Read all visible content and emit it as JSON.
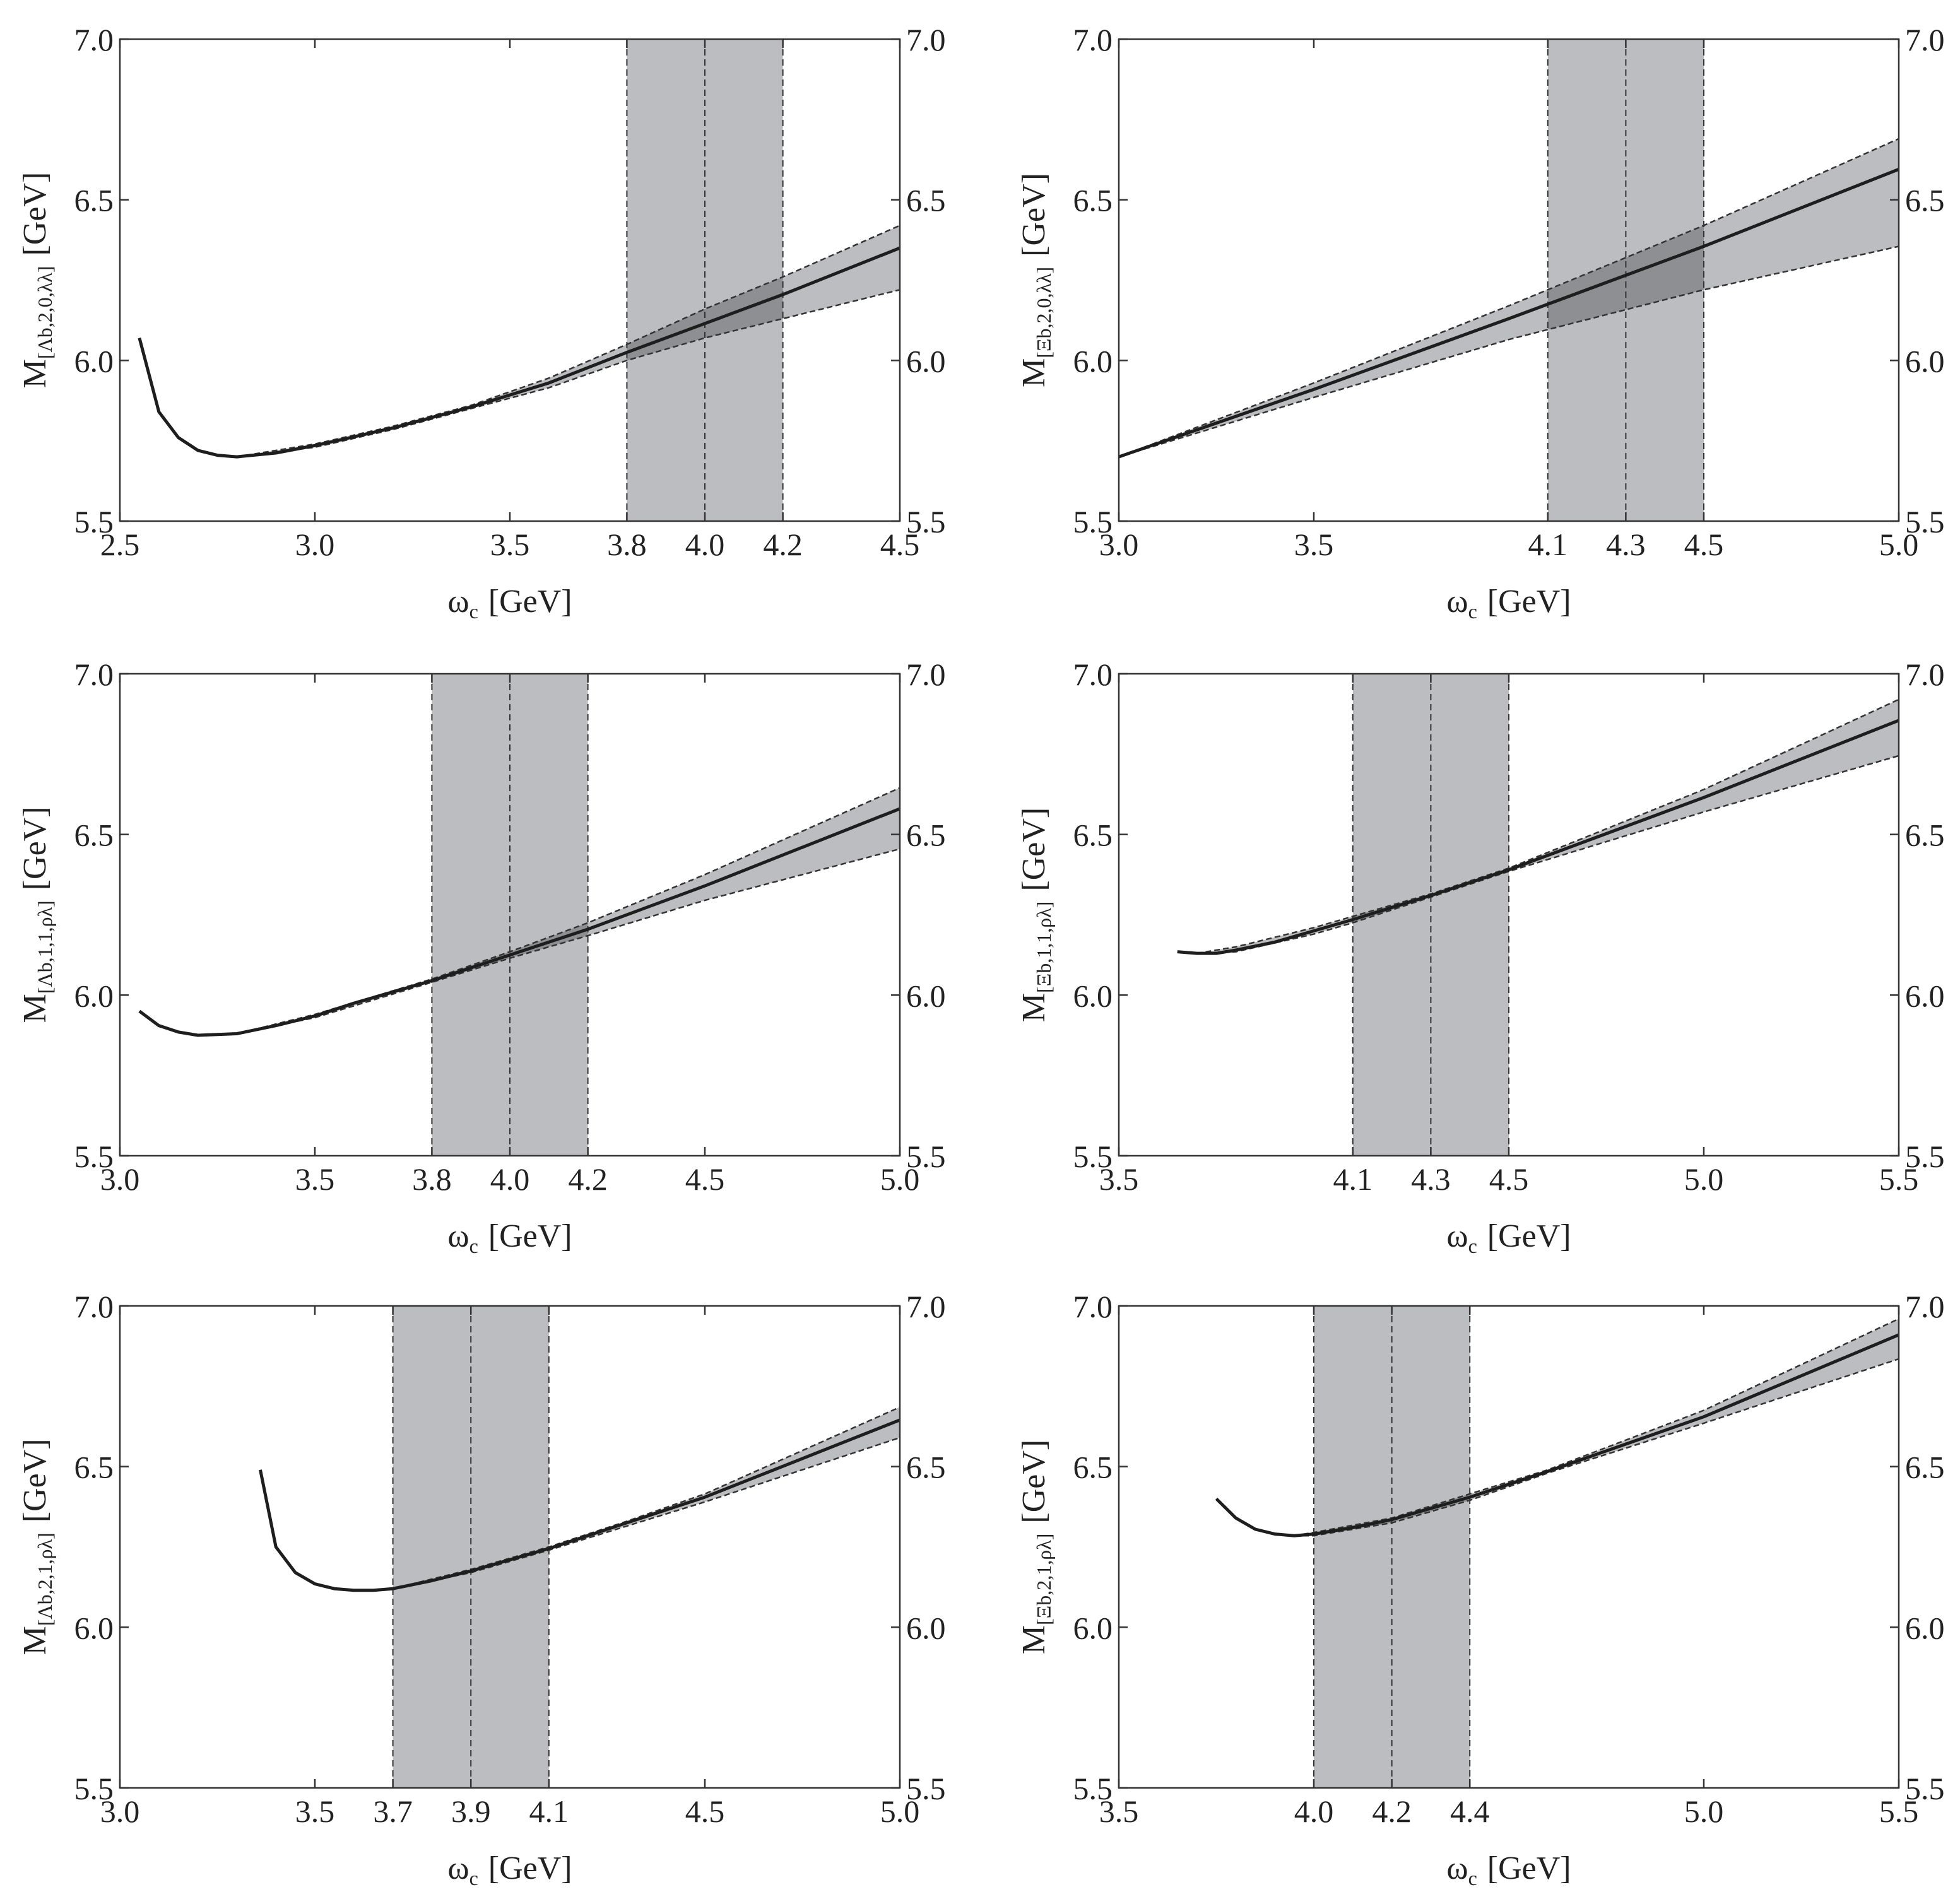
{
  "colors": {
    "band": "#bcbdc0",
    "band_overlap": "#8e8f92",
    "curve": "#1e1e1e",
    "dash": "#333333",
    "frame": "#333333"
  },
  "chart_data": [
    {
      "type": "line",
      "title": "",
      "xlabel": {
        "main": "ω",
        "sub": "c",
        "unit": "[GeV]"
      },
      "ylabel": {
        "main": "M",
        "sub": "[Λb,2,0,λλ]",
        "unit": "[GeV]"
      },
      "xlim": [
        2.5,
        4.5
      ],
      "ylim": [
        5.5,
        7.0
      ],
      "xticks": [
        2.5,
        3.0,
        3.5,
        3.8,
        4.0,
        4.2,
        4.5
      ],
      "xtick_labels": [
        "2.5",
        "3.0",
        "3.5",
        "3.8",
        "4.0",
        "4.2",
        "4.5"
      ],
      "yticks": [
        5.5,
        6.0,
        6.5,
        7.0
      ],
      "ytick_labels": [
        "5.5",
        "6.0",
        "6.5",
        "7.0"
      ],
      "working_window": {
        "from": 3.8,
        "center": 4.0,
        "to": 4.2
      },
      "series": [
        {
          "name": "central",
          "x": [
            2.55,
            2.6,
            2.65,
            2.7,
            2.75,
            2.8,
            2.9,
            3.0,
            3.2,
            3.4,
            3.6,
            3.8,
            4.0,
            4.2,
            4.5
          ],
          "y": [
            6.07,
            5.84,
            5.76,
            5.72,
            5.705,
            5.7,
            5.712,
            5.735,
            5.79,
            5.855,
            5.93,
            6.025,
            6.115,
            6.205,
            6.35
          ]
        },
        {
          "name": "upper",
          "x": [
            2.8,
            3.0,
            3.2,
            3.4,
            3.6,
            3.8,
            4.0,
            4.2,
            4.5
          ],
          "y": [
            5.7,
            5.74,
            5.795,
            5.86,
            5.945,
            6.05,
            6.16,
            6.26,
            6.42
          ]
        },
        {
          "name": "lower",
          "x": [
            2.8,
            3.0,
            3.2,
            3.4,
            3.6,
            3.8,
            4.0,
            4.2,
            4.5
          ],
          "y": [
            5.7,
            5.73,
            5.785,
            5.85,
            5.915,
            6.0,
            6.07,
            6.13,
            6.22
          ]
        }
      ]
    },
    {
      "type": "line",
      "title": "",
      "xlabel": {
        "main": "ω",
        "sub": "c",
        "unit": "[GeV]"
      },
      "ylabel": {
        "main": "M",
        "sub": "[Ξb,2,0,λλ]",
        "unit": "[GeV]"
      },
      "xlim": [
        3.0,
        5.0
      ],
      "ylim": [
        5.5,
        7.0
      ],
      "xticks": [
        3.0,
        3.5,
        4.1,
        4.3,
        4.5,
        5.0
      ],
      "xtick_labels": [
        "3.0",
        "3.5",
        "4.1",
        "4.3",
        "4.5",
        "5.0"
      ],
      "yticks": [
        5.5,
        6.0,
        6.5,
        7.0
      ],
      "ytick_labels": [
        "5.5",
        "6.0",
        "6.5",
        "7.0"
      ],
      "working_window": {
        "from": 4.1,
        "center": 4.3,
        "to": 4.5
      },
      "series": [
        {
          "name": "central",
          "x": [
            3.0,
            3.5,
            4.0,
            4.5,
            5.0
          ],
          "y": [
            5.7,
            5.91,
            6.13,
            6.355,
            6.595
          ]
        },
        {
          "name": "upper",
          "x": [
            3.0,
            3.5,
            4.0,
            4.5,
            5.0
          ],
          "y": [
            5.7,
            5.93,
            6.17,
            6.42,
            6.69
          ]
        },
        {
          "name": "lower",
          "x": [
            3.0,
            3.5,
            4.0,
            4.5,
            5.0
          ],
          "y": [
            5.7,
            5.885,
            6.065,
            6.22,
            6.355
          ]
        }
      ]
    },
    {
      "type": "line",
      "title": "",
      "xlabel": {
        "main": "ω",
        "sub": "c",
        "unit": "[GeV]"
      },
      "ylabel": {
        "main": "M",
        "sub": "[Λb,1,1,ρλ]",
        "unit": "[GeV]"
      },
      "xlim": [
        3.0,
        5.0
      ],
      "ylim": [
        5.5,
        7.0
      ],
      "xticks": [
        3.0,
        3.5,
        3.8,
        4.0,
        4.2,
        4.5,
        5.0
      ],
      "xtick_labels": [
        "3.0",
        "3.5",
        "3.8",
        "4.0",
        "4.2",
        "4.5",
        "5.0"
      ],
      "yticks": [
        5.5,
        6.0,
        6.5,
        7.0
      ],
      "ytick_labels": [
        "5.5",
        "6.0",
        "6.5",
        "7.0"
      ],
      "working_window": {
        "from": 3.8,
        "center": 4.0,
        "to": 4.2
      },
      "series": [
        {
          "name": "central",
          "x": [
            3.05,
            3.1,
            3.15,
            3.2,
            3.3,
            3.4,
            3.5,
            3.6,
            3.8,
            4.0,
            4.2,
            4.5,
            5.0
          ],
          "y": [
            5.95,
            5.905,
            5.885,
            5.875,
            5.88,
            5.905,
            5.935,
            5.975,
            6.045,
            6.125,
            6.205,
            6.34,
            6.58
          ]
        },
        {
          "name": "upper",
          "x": [
            3.3,
            3.5,
            3.8,
            4.0,
            4.2,
            4.5,
            5.0
          ],
          "y": [
            5.88,
            5.94,
            6.05,
            6.135,
            6.225,
            6.375,
            6.645
          ]
        },
        {
          "name": "lower",
          "x": [
            3.3,
            3.5,
            3.8,
            4.0,
            4.2,
            4.5,
            5.0
          ],
          "y": [
            5.88,
            5.93,
            6.04,
            6.115,
            6.185,
            6.295,
            6.455
          ]
        }
      ]
    },
    {
      "type": "line",
      "title": "",
      "xlabel": {
        "main": "ω",
        "sub": "c",
        "unit": "[GeV]"
      },
      "ylabel": {
        "main": "M",
        "sub": "[Ξb,1,1,ρλ]",
        "unit": "[GeV]"
      },
      "xlim": [
        3.5,
        5.5
      ],
      "ylim": [
        5.5,
        7.0
      ],
      "xticks": [
        3.5,
        4.1,
        4.3,
        4.5,
        5.0,
        5.5
      ],
      "xtick_labels": [
        "3.5",
        "4.1",
        "4.3",
        "4.5",
        "5.0",
        "5.5"
      ],
      "yticks": [
        5.5,
        6.0,
        6.5,
        7.0
      ],
      "ytick_labels": [
        "5.5",
        "6.0",
        "6.5",
        "7.0"
      ],
      "working_window": {
        "from": 4.1,
        "center": 4.3,
        "to": 4.5
      },
      "series": [
        {
          "name": "central",
          "x": [
            3.65,
            3.7,
            3.75,
            3.8,
            3.9,
            4.0,
            4.1,
            4.3,
            4.5,
            5.0,
            5.5
          ],
          "y": [
            6.135,
            6.13,
            6.13,
            6.14,
            6.165,
            6.2,
            6.235,
            6.31,
            6.39,
            6.615,
            6.855
          ]
        },
        {
          "name": "upper",
          "x": [
            3.7,
            3.8,
            4.0,
            4.1,
            4.3,
            4.5,
            5.0,
            5.5
          ],
          "y": [
            6.13,
            6.15,
            6.21,
            6.245,
            6.315,
            6.395,
            6.64,
            6.92
          ]
        },
        {
          "name": "lower",
          "x": [
            3.7,
            3.8,
            4.0,
            4.1,
            4.3,
            4.5,
            5.0,
            5.5
          ],
          "y": [
            6.13,
            6.135,
            6.19,
            6.225,
            6.305,
            6.385,
            6.57,
            6.745
          ]
        }
      ]
    },
    {
      "type": "line",
      "title": "",
      "xlabel": {
        "main": "ω",
        "sub": "c",
        "unit": "[GeV]"
      },
      "ylabel": {
        "main": "M",
        "sub": "[Λb,2,1,ρλ]",
        "unit": "[GeV]"
      },
      "xlim": [
        3.0,
        5.0
      ],
      "ylim": [
        5.5,
        7.0
      ],
      "xticks": [
        3.0,
        3.5,
        3.7,
        3.9,
        4.1,
        4.5,
        5.0
      ],
      "xtick_labels": [
        "3.0",
        "3.5",
        "3.7",
        "3.9",
        "4.1",
        "4.5",
        "5.0"
      ],
      "yticks": [
        5.5,
        6.0,
        6.5,
        7.0
      ],
      "ytick_labels": [
        "5.5",
        "6.0",
        "6.5",
        "7.0"
      ],
      "working_window": {
        "from": 3.7,
        "center": 3.9,
        "to": 4.1
      },
      "series": [
        {
          "name": "central",
          "x": [
            3.36,
            3.4,
            3.45,
            3.5,
            3.55,
            3.6,
            3.65,
            3.7,
            3.8,
            3.9,
            4.0,
            4.1,
            4.3,
            4.5,
            5.0
          ],
          "y": [
            6.49,
            6.25,
            6.17,
            6.135,
            6.12,
            6.115,
            6.115,
            6.12,
            6.145,
            6.175,
            6.21,
            6.245,
            6.325,
            6.405,
            6.645
          ]
        },
        {
          "name": "upper",
          "x": [
            3.7,
            3.9,
            4.1,
            4.3,
            4.5,
            5.0
          ],
          "y": [
            6.12,
            6.18,
            6.25,
            6.33,
            6.415,
            6.685
          ]
        },
        {
          "name": "lower",
          "x": [
            3.7,
            3.9,
            4.1,
            4.3,
            4.5,
            5.0
          ],
          "y": [
            6.12,
            6.17,
            6.24,
            6.315,
            6.39,
            6.59
          ]
        }
      ]
    },
    {
      "type": "line",
      "title": "",
      "xlabel": {
        "main": "ω",
        "sub": "c",
        "unit": "[GeV]"
      },
      "ylabel": {
        "main": "M",
        "sub": "[Ξb,2,1,ρλ]",
        "unit": "[GeV]"
      },
      "xlim": [
        3.5,
        5.5
      ],
      "ylim": [
        5.5,
        7.0
      ],
      "xticks": [
        3.5,
        4.0,
        4.2,
        4.4,
        5.0,
        5.5
      ],
      "xtick_labels": [
        "3.5",
        "4.0",
        "4.2",
        "4.4",
        "5.0",
        "5.5"
      ],
      "yticks": [
        5.5,
        6.0,
        6.5,
        7.0
      ],
      "ytick_labels": [
        "5.5",
        "6.0",
        "6.5",
        "7.0"
      ],
      "working_window": {
        "from": 4.0,
        "center": 4.2,
        "to": 4.4
      },
      "series": [
        {
          "name": "central",
          "x": [
            3.75,
            3.8,
            3.85,
            3.9,
            3.95,
            4.0,
            4.1,
            4.2,
            4.4,
            4.6,
            4.8,
            5.0,
            5.5
          ],
          "y": [
            6.4,
            6.34,
            6.305,
            6.29,
            6.285,
            6.29,
            6.31,
            6.335,
            6.405,
            6.485,
            6.57,
            6.655,
            6.91
          ]
        },
        {
          "name": "upper",
          "x": [
            3.95,
            4.0,
            4.2,
            4.4,
            4.6,
            5.0,
            5.5
          ],
          "y": [
            6.285,
            6.295,
            6.34,
            6.415,
            6.49,
            6.675,
            6.96
          ]
        },
        {
          "name": "lower",
          "x": [
            3.95,
            4.0,
            4.2,
            4.4,
            4.6,
            5.0,
            5.5
          ],
          "y": [
            6.285,
            6.285,
            6.325,
            6.395,
            6.48,
            6.635,
            6.835
          ]
        }
      ]
    }
  ]
}
